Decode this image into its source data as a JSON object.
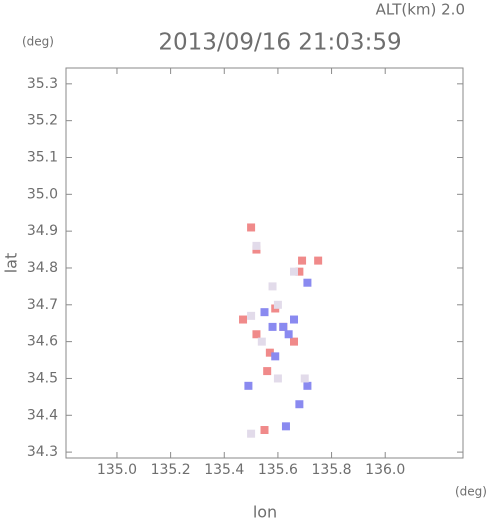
{
  "chart_data": {
    "type": "scatter",
    "title": "2013/09/16 21:03:59",
    "altitude_label": "ALT(km) 2.0",
    "y_unit": "(deg)",
    "x_unit": "(deg)",
    "x_label": "lon",
    "y_label": "lat",
    "xlim": [
      134.81,
      136.29
    ],
    "ylim": [
      34.284,
      35.343
    ],
    "xticks": [
      {
        "value": 135.0,
        "label": "135.0"
      },
      135.2,
      135.4,
      135.6,
      135.8,
      {
        "value": 136.0,
        "label": "136.0"
      }
    ],
    "yticks": [
      34.3,
      34.4,
      34.5,
      34.6,
      34.7,
      34.8,
      34.9,
      {
        "value": 35.0,
        "label": "35.0"
      },
      35.1,
      35.2,
      35.3
    ],
    "series": [
      {
        "color": "#f08a8a",
        "x": [
          135.5,
          135.52,
          135.68,
          135.75,
          135.47,
          135.52,
          135.57,
          135.62,
          135.56,
          135.55,
          135.69,
          135.59,
          135.66
        ],
        "y": [
          34.91,
          34.85,
          34.79,
          34.82,
          34.66,
          34.62,
          34.57,
          34.64,
          34.52,
          34.36,
          34.82,
          34.69,
          34.6
        ]
      },
      {
        "color": "#8a8af0",
        "x": [
          135.71,
          135.62,
          135.64,
          135.55,
          135.49,
          135.68,
          135.63,
          135.59,
          135.66,
          135.71,
          135.58
        ],
        "y": [
          34.76,
          34.64,
          34.62,
          34.68,
          34.48,
          34.43,
          34.37,
          34.56,
          34.66,
          34.48,
          34.64
        ]
      },
      {
        "color": "#e2dbea",
        "x": [
          135.52,
          135.5,
          135.6,
          135.54,
          135.6,
          135.5,
          135.7,
          135.66,
          135.58
        ],
        "y": [
          34.86,
          34.67,
          34.7,
          34.6,
          34.5,
          34.35,
          34.5,
          34.79,
          34.75
        ]
      }
    ]
  }
}
